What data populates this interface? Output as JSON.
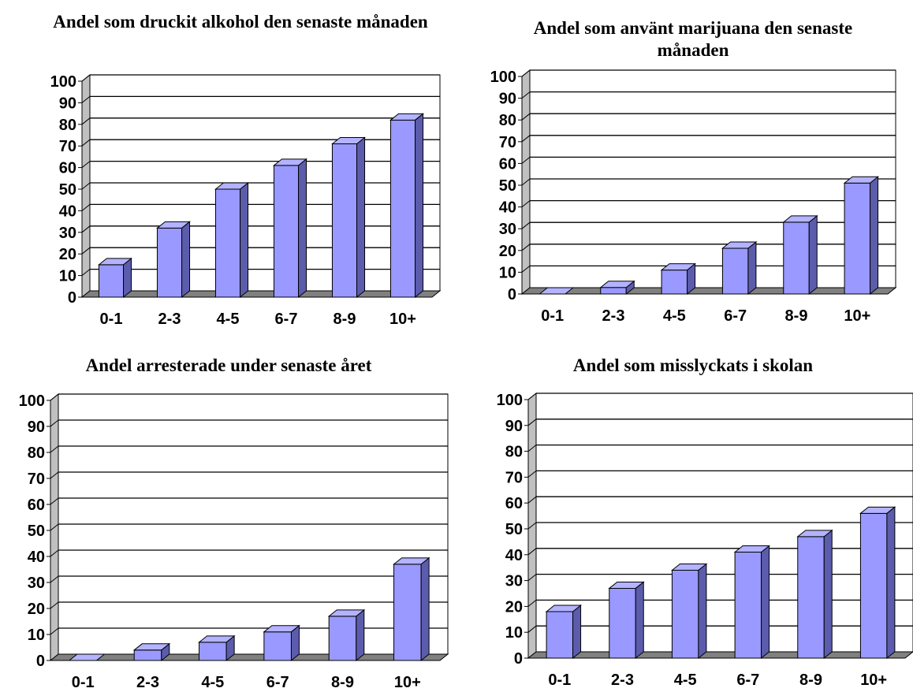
{
  "chart_data": [
    {
      "type": "bar",
      "title": "Andel som druckit alkohol den senaste månaden",
      "categories": [
        "0-1",
        "2-3",
        "4-5",
        "6-7",
        "8-9",
        "10+"
      ],
      "values": [
        15,
        32,
        50,
        61,
        71,
        82
      ],
      "ylim": [
        0,
        100
      ],
      "yticks": [
        "0",
        "10",
        "20",
        "30",
        "40",
        "50",
        "60",
        "70",
        "80",
        "90",
        "100"
      ],
      "xlabel": "",
      "ylabel": "",
      "grid": true,
      "legend": false,
      "style": "3d"
    },
    {
      "type": "bar",
      "title": "Andel som använt marijuana den senaste månaden",
      "categories": [
        "0-1",
        "2-3",
        "4-5",
        "6-7",
        "8-9",
        "10+"
      ],
      "values": [
        0,
        3,
        11,
        21,
        33,
        51
      ],
      "ylim": [
        0,
        100
      ],
      "yticks": [
        "0",
        "10",
        "20",
        "30",
        "40",
        "50",
        "60",
        "70",
        "80",
        "90",
        "100"
      ],
      "xlabel": "",
      "ylabel": "",
      "grid": true,
      "legend": false,
      "style": "3d"
    },
    {
      "type": "bar",
      "title": "Andel arresterade under senaste året",
      "categories": [
        "0-1",
        "2-3",
        "4-5",
        "6-7",
        "8-9",
        "10+"
      ],
      "values": [
        0,
        4,
        7,
        11,
        17,
        37
      ],
      "ylim": [
        0,
        100
      ],
      "yticks": [
        "0",
        "10",
        "20",
        "30",
        "40",
        "50",
        "60",
        "70",
        "80",
        "90",
        "100"
      ],
      "xlabel": "",
      "ylabel": "",
      "grid": true,
      "legend": false,
      "style": "3d"
    },
    {
      "type": "bar",
      "title": "Andel som misslyckats i skolan",
      "categories": [
        "0-1",
        "2-3",
        "4-5",
        "6-7",
        "8-9",
        "10+"
      ],
      "values": [
        18,
        27,
        34,
        41,
        47,
        56
      ],
      "ylim": [
        0,
        100
      ],
      "yticks": [
        "0",
        "10",
        "20",
        "30",
        "40",
        "50",
        "60",
        "70",
        "80",
        "90",
        "100"
      ],
      "xlabel": "",
      "ylabel": "",
      "grid": true,
      "legend": false,
      "style": "3d"
    }
  ],
  "colors": {
    "bar_front": "#9999ff",
    "bar_top": "#b3b3ff",
    "bar_side": "#5c5cad",
    "wall": "#ffffff",
    "side_wall": "#c0c0c0",
    "floor": "#808080",
    "gridline": "#000000"
  }
}
